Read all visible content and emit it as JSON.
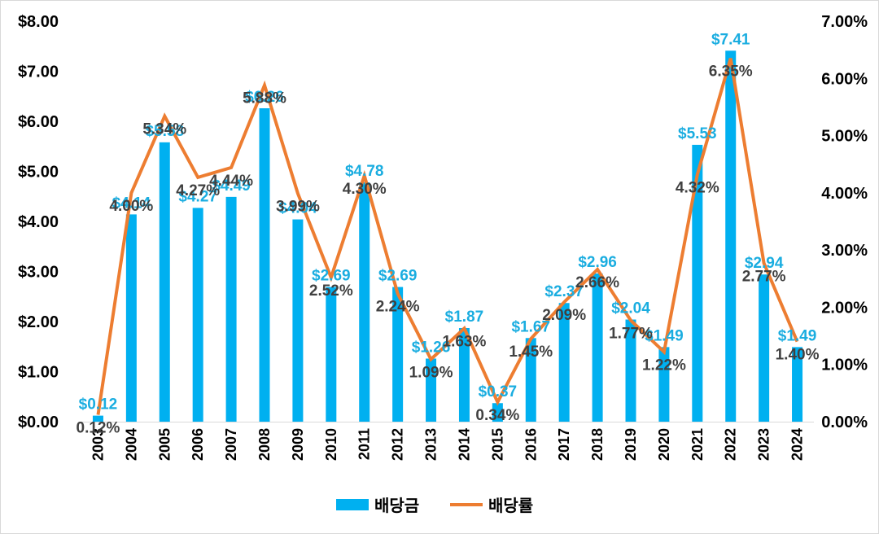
{
  "chart_data": {
    "type": "bar",
    "title": "",
    "xlabel": "",
    "ylabel": "",
    "y2label": "",
    "categories": [
      "2003",
      "2004",
      "2005",
      "2006",
      "2007",
      "2008",
      "2009",
      "2010",
      "2011",
      "2012",
      "2013",
      "2014",
      "2015",
      "2016",
      "2017",
      "2018",
      "2019",
      "2020",
      "2021",
      "2022",
      "2023",
      "2024"
    ],
    "ylim": [
      0,
      8
    ],
    "y2lim": [
      0,
      0.07
    ],
    "y_ticks": [
      "$0.00",
      "$1.00",
      "$2.00",
      "$3.00",
      "$4.00",
      "$5.00",
      "$6.00",
      "$7.00",
      "$8.00"
    ],
    "y2_ticks": [
      "0.00%",
      "1.00%",
      "2.00%",
      "3.00%",
      "4.00%",
      "5.00%",
      "6.00%",
      "7.00%"
    ],
    "grid": false,
    "legend_position": "bottom",
    "series": [
      {
        "name": "배당금",
        "kind": "bar",
        "axis": "left",
        "color": "#00B0F0",
        "label_color": "#1AADE0",
        "values": [
          0.12,
          4.14,
          5.58,
          4.27,
          4.49,
          6.26,
          4.04,
          2.69,
          4.78,
          2.69,
          1.26,
          1.87,
          0.37,
          1.67,
          2.37,
          2.96,
          2.04,
          1.49,
          5.53,
          7.41,
          2.94,
          1.49
        ],
        "labels": [
          "$0.12",
          "$4.14",
          "$5.58",
          "$4.27",
          "$4.49",
          "$6.26",
          "$4.04",
          "$2.69",
          "$4.78",
          "$2.69",
          "$1.26",
          "$1.87",
          "$0.37",
          "$1.67",
          "$2.37",
          "$2.96",
          "$2.04",
          "$1.49",
          "$5.53",
          "$7.41",
          "$2.94",
          "$1.49"
        ]
      },
      {
        "name": "배당률",
        "kind": "line",
        "axis": "right",
        "color": "#ED7D31",
        "label_color": "#404040",
        "values": [
          0.12,
          4.0,
          5.34,
          4.27,
          4.44,
          5.88,
          3.99,
          2.52,
          4.3,
          2.24,
          1.09,
          1.63,
          0.34,
          1.45,
          2.09,
          2.66,
          1.77,
          1.22,
          4.32,
          6.35,
          2.77,
          1.4
        ],
        "labels": [
          "0.12%",
          "4.00%",
          "5.34%",
          "4.27%",
          "4.44%",
          "5.88%",
          "3.99%",
          "2.52%",
          "4.30%",
          "2.24%",
          "1.09%",
          "1.63%",
          "0.34%",
          "1.45%",
          "2.09%",
          "2.66%",
          "1.77%",
          "1.22%",
          "4.32%",
          "6.35%",
          "2.77%",
          "1.40%"
        ]
      }
    ]
  }
}
